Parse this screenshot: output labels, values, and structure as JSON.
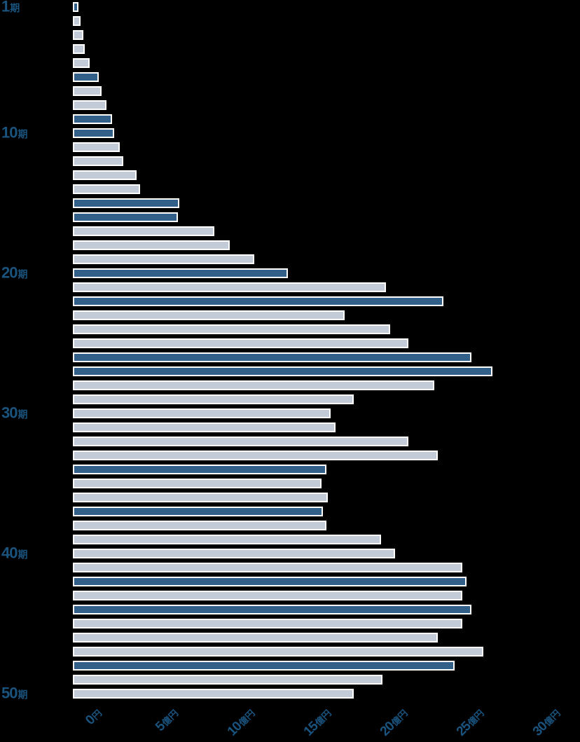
{
  "chart_data": {
    "type": "bar",
    "orientation": "horizontal",
    "unit": "億円",
    "grid": false,
    "legend": null,
    "x_axis": {
      "tick_labels": [
        "0円",
        "5億円",
        "10億円",
        "15億円",
        "20億円",
        "25億円",
        "30億円"
      ],
      "tick_values": [
        0,
        5,
        10,
        15,
        20,
        25,
        30
      ],
      "range": [
        0,
        30
      ]
    },
    "y_axis": {
      "tick_labels": [
        "1期",
        "10期",
        "20期",
        "30期",
        "40期",
        "50期"
      ],
      "tick_periods": [
        1,
        10,
        20,
        30,
        40,
        50
      ],
      "range": [
        1,
        50
      ]
    },
    "series": [
      {
        "period": 1,
        "label": "1期",
        "value": 0.2,
        "highlighted": true
      },
      {
        "period": 2,
        "label": "2期",
        "value": 0.3,
        "highlighted": false
      },
      {
        "period": 3,
        "label": "3期",
        "value": 0.5,
        "highlighted": false
      },
      {
        "period": 4,
        "label": "4期",
        "value": 0.6,
        "highlighted": false
      },
      {
        "period": 5,
        "label": "5期",
        "value": 0.9,
        "highlighted": false
      },
      {
        "period": 6,
        "label": "6期",
        "value": 1.5,
        "highlighted": true
      },
      {
        "period": 7,
        "label": "7期",
        "value": 1.7,
        "highlighted": false
      },
      {
        "period": 8,
        "label": "8期",
        "value": 2.0,
        "highlighted": false
      },
      {
        "period": 9,
        "label": "9期",
        "value": 2.4,
        "highlighted": true
      },
      {
        "period": 10,
        "label": "10期",
        "value": 2.5,
        "highlighted": true
      },
      {
        "period": 11,
        "label": "11期",
        "value": 2.9,
        "highlighted": false
      },
      {
        "period": 12,
        "label": "12期",
        "value": 3.1,
        "highlighted": false
      },
      {
        "period": 13,
        "label": "13期",
        "value": 4.0,
        "highlighted": false
      },
      {
        "period": 14,
        "label": "14期",
        "value": 4.2,
        "highlighted": false
      },
      {
        "period": 15,
        "label": "15期",
        "value": 6.8,
        "highlighted": true
      },
      {
        "period": 16,
        "label": "16期",
        "value": 6.7,
        "highlighted": true
      },
      {
        "period": 17,
        "label": "17期",
        "value": 9.1,
        "highlighted": false
      },
      {
        "period": 18,
        "label": "18期",
        "value": 10.1,
        "highlighted": false
      },
      {
        "period": 19,
        "label": "19期",
        "value": 11.7,
        "highlighted": false
      },
      {
        "period": 20,
        "label": "20期",
        "value": 13.9,
        "highlighted": true
      },
      {
        "period": 21,
        "label": "21期",
        "value": 20.3,
        "highlighted": false
      },
      {
        "period": 22,
        "label": "22期",
        "value": 24.1,
        "highlighted": true
      },
      {
        "period": 23,
        "label": "23期",
        "value": 17.6,
        "highlighted": false
      },
      {
        "period": 24,
        "label": "24期",
        "value": 20.6,
        "highlighted": false
      },
      {
        "period": 25,
        "label": "25期",
        "value": 21.8,
        "highlighted": false
      },
      {
        "period": 26,
        "label": "26期",
        "value": 25.9,
        "highlighted": true
      },
      {
        "period": 27,
        "label": "27期",
        "value": 27.3,
        "highlighted": true
      },
      {
        "period": 28,
        "label": "28期",
        "value": 23.5,
        "highlighted": false
      },
      {
        "period": 29,
        "label": "29期",
        "value": 18.2,
        "highlighted": false
      },
      {
        "period": 30,
        "label": "30期",
        "value": 16.7,
        "highlighted": false
      },
      {
        "period": 31,
        "label": "31期",
        "value": 17.0,
        "highlighted": false
      },
      {
        "period": 32,
        "label": "32期",
        "value": 21.8,
        "highlighted": false
      },
      {
        "period": 33,
        "label": "33期",
        "value": 23.7,
        "highlighted": false
      },
      {
        "period": 34,
        "label": "34期",
        "value": 16.4,
        "highlighted": true
      },
      {
        "period": 35,
        "label": "35期",
        "value": 16.1,
        "highlighted": false
      },
      {
        "period": 36,
        "label": "36期",
        "value": 16.5,
        "highlighted": false
      },
      {
        "period": 37,
        "label": "37期",
        "value": 16.2,
        "highlighted": true
      },
      {
        "period": 38,
        "label": "38期",
        "value": 16.4,
        "highlighted": false
      },
      {
        "period": 39,
        "label": "39期",
        "value": 20.0,
        "highlighted": false
      },
      {
        "period": 40,
        "label": "40期",
        "value": 20.9,
        "highlighted": false
      },
      {
        "period": 41,
        "label": "41期",
        "value": 25.3,
        "highlighted": false
      },
      {
        "period": 42,
        "label": "42期",
        "value": 25.6,
        "highlighted": true
      },
      {
        "period": 43,
        "label": "43期",
        "value": 25.3,
        "highlighted": false
      },
      {
        "period": 44,
        "label": "44期",
        "value": 25.9,
        "highlighted": true
      },
      {
        "period": 45,
        "label": "45期",
        "value": 25.3,
        "highlighted": false
      },
      {
        "period": 46,
        "label": "46期",
        "value": 23.7,
        "highlighted": false
      },
      {
        "period": 47,
        "label": "47期",
        "value": 26.7,
        "highlighted": false
      },
      {
        "period": 48,
        "label": "48期",
        "value": 24.8,
        "highlighted": true
      },
      {
        "period": 49,
        "label": "49期",
        "value": 20.1,
        "highlighted": false
      },
      {
        "period": 50,
        "label": "50期",
        "value": 18.2,
        "highlighted": false
      }
    ],
    "colors": {
      "bar_default": "#C3CBD9",
      "bar_highlight": "#336089",
      "bar_border": "#FFFFFF",
      "axis_label": "#19537E",
      "background": "#000000"
    }
  }
}
